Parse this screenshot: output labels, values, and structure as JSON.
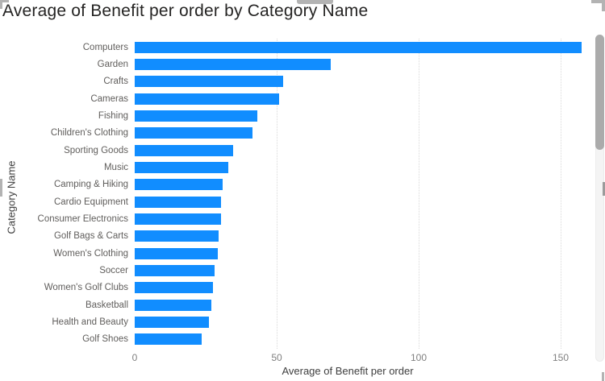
{
  "title": "Average of Benefit per order by Category Name",
  "x_axis": {
    "title": "Average of Benefit per order",
    "tick_labels": [
      "0",
      "50",
      "100",
      "150"
    ],
    "tick_values": [
      0,
      50,
      100,
      150
    ]
  },
  "y_axis": {
    "title": "Category Name"
  },
  "colors": {
    "bar": "#118DFF",
    "gridline": "#d9d9d9",
    "handle": "#b3b3b3"
  },
  "chart_data": {
    "type": "bar",
    "orientation": "horizontal",
    "title": "Average of Benefit per order by Category Name",
    "xlabel": "Average of Benefit per order",
    "ylabel": "Category Name",
    "xlim": [
      0,
      160
    ],
    "grid": "vertical-dotted",
    "legend": "none",
    "categories": [
      "Computers",
      "Garden",
      "Crafts",
      "Cameras",
      "Fishing",
      "Children's Clothing",
      "Sporting Goods",
      "Music",
      "Camping & Hiking",
      "Cardio Equipment",
      "Consumer Electronics",
      "Golf Bags & Carts",
      "Women's Clothing",
      "Soccer",
      "Women's Golf Clubs",
      "Basketball",
      "Health and Beauty",
      "Golf Shoes"
    ],
    "values": [
      157.4,
      69.0,
      52.3,
      50.9,
      43.2,
      41.5,
      34.7,
      33.0,
      31.0,
      30.5,
      30.4,
      29.5,
      29.2,
      28.1,
      27.6,
      27.0,
      26.1,
      23.6
    ]
  }
}
